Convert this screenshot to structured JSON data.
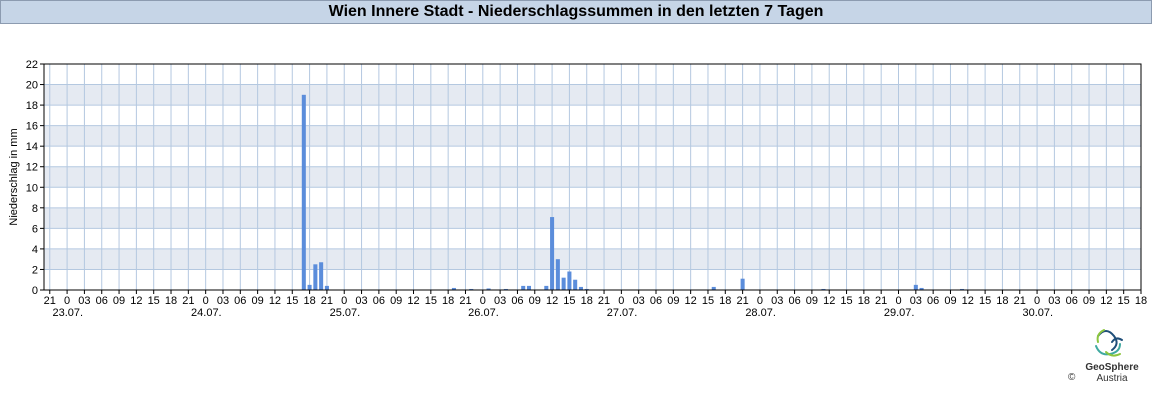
{
  "header": {
    "title": "Wien Innere Stadt - Niederschlagssummen in den letzten 7 Tagen"
  },
  "colors": {
    "bar": "#5b8ddb",
    "band": "#e5eaf2",
    "grid": "#b4c8e0",
    "title_bg": "#c6d5e7"
  },
  "logo": {
    "name": "GeoSphere",
    "sub": "Austria",
    "copyright": "©",
    "icon": "geosphere-logo-icon"
  },
  "chart_data": {
    "type": "bar",
    "title": "",
    "ylabel": "Niederschlag in mm",
    "xlabel": "",
    "ylim": [
      0,
      22
    ],
    "y_ticks": [
      0,
      2,
      4,
      6,
      8,
      10,
      12,
      14,
      16,
      18,
      20,
      22
    ],
    "xlim_hours": [
      -4,
      186
    ],
    "grid": true,
    "x_tick_labels": [
      "21",
      "0",
      "03",
      "06",
      "09",
      "12",
      "15",
      "18",
      "21",
      "0",
      "03",
      "06",
      "09",
      "12",
      "15",
      "18",
      "21",
      "0",
      "03",
      "06",
      "09",
      "12",
      "15",
      "18",
      "21",
      "0",
      "03",
      "06",
      "09",
      "12",
      "15",
      "18",
      "21",
      "0",
      "03",
      "06",
      "09",
      "12",
      "15",
      "18",
      "21",
      "0",
      "03",
      "06",
      "09",
      "12",
      "15",
      "18",
      "21",
      "0",
      "03",
      "06",
      "09",
      "12",
      "15",
      "18",
      "21",
      "0",
      "03",
      "06",
      "09",
      "12",
      "15",
      "18",
      "21",
      "0",
      "03",
      "06",
      "09",
      "12",
      "15"
    ],
    "x_tick_hours_start": -3,
    "x_tick_step_hours": 3,
    "date_labels": [
      "23.07.",
      "24.07.",
      "25.07.",
      "26.07.",
      "27.07.",
      "28.07.",
      "29.07.",
      "30.07."
    ],
    "date_label_hours": [
      -3,
      21,
      45,
      69,
      93,
      117,
      141,
      165
    ],
    "series": [
      {
        "x_hours": [
          41,
          42,
          43,
          44,
          45,
          67,
          70,
          73,
          76,
          79,
          80,
          83,
          84,
          85,
          86,
          87,
          88,
          89,
          90,
          112,
          117,
          131,
          147,
          148,
          155
        ],
        "values": [
          19.0,
          0.5,
          2.5,
          2.7,
          0.4,
          0.2,
          0.1,
          0.15,
          0.1,
          0.4,
          0.4,
          0.4,
          7.1,
          3.0,
          1.2,
          1.8,
          1.0,
          0.3,
          0.1,
          0.3,
          1.1,
          0.1,
          0.5,
          0.2,
          0.1
        ]
      }
    ]
  }
}
